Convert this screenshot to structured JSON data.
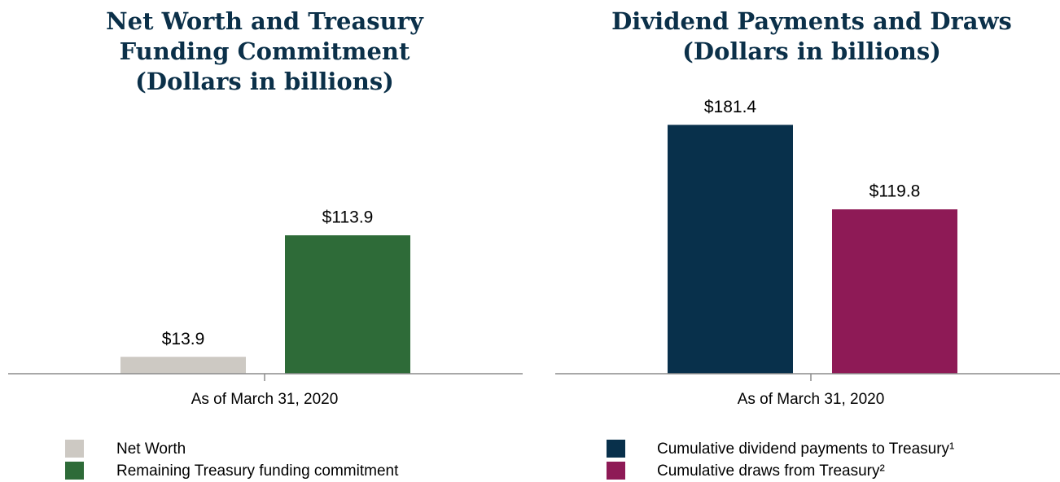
{
  "chart_data": [
    {
      "type": "bar",
      "title": [
        "Net Worth and Treasury",
        "Funding Commitment",
        "(Dollars in billions)"
      ],
      "categories": [
        "As of March 31, 2020"
      ],
      "series": [
        {
          "name": "Net Worth",
          "color": "#cdc9c3",
          "values": [
            13.9
          ],
          "value_labels": [
            "$13.9"
          ]
        },
        {
          "name": "Remaining Treasury funding commitment",
          "color": "#2e6b38",
          "values": [
            113.9
          ],
          "value_labels": [
            "$113.9"
          ]
        }
      ],
      "ylim": [
        0,
        200
      ]
    },
    {
      "type": "bar",
      "title": [
        "Dividend Payments and Draws",
        "(Dollars in billions)"
      ],
      "categories": [
        "As of March 31, 2020"
      ],
      "series": [
        {
          "name": "Cumulative dividend payments to Treasury¹",
          "color": "#08304b",
          "values": [
            181.4
          ],
          "value_labels": [
            "$181.4"
          ]
        },
        {
          "name": "Cumulative draws from Treasury²",
          "color": "#8e1a56",
          "values": [
            119.8
          ],
          "value_labels": [
            "$119.8"
          ]
        }
      ],
      "ylim": [
        0,
        200
      ]
    }
  ]
}
